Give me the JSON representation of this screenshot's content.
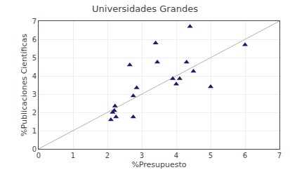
{
  "chart_data": {
    "type": "scatter",
    "title": "Universidades Grandes",
    "xlabel": "%Presupuesto",
    "ylabel": "%Publicaciones Científicas",
    "series": [
      {
        "type": "line",
        "color": "#b0b0b0",
        "x": [
          0,
          7
        ],
        "values": [
          0,
          7
        ]
      },
      {
        "type": "scatter",
        "color": "#1a1a6e",
        "marker": "triangle-up",
        "x": [
          2.1,
          2.15,
          2.2,
          2.22,
          2.25,
          2.65,
          2.75,
          2.75,
          2.85,
          3.4,
          3.45,
          3.9,
          4.0,
          4.1,
          4.3,
          4.4,
          4.5,
          5.0,
          6.0
        ],
        "values": [
          1.6,
          2.0,
          2.1,
          2.35,
          1.75,
          4.6,
          2.9,
          1.75,
          3.35,
          5.8,
          4.75,
          3.85,
          3.55,
          3.85,
          4.75,
          6.7,
          4.25,
          3.4,
          5.7
        ]
      }
    ],
    "xlim": [
      0,
      7
    ],
    "ylim": [
      0,
      7
    ],
    "xticks": [
      0,
      1,
      2,
      3,
      4,
      5,
      6,
      7
    ],
    "yticks": [
      0,
      1,
      2,
      3,
      4,
      5,
      6,
      7
    ],
    "grid": true
  }
}
